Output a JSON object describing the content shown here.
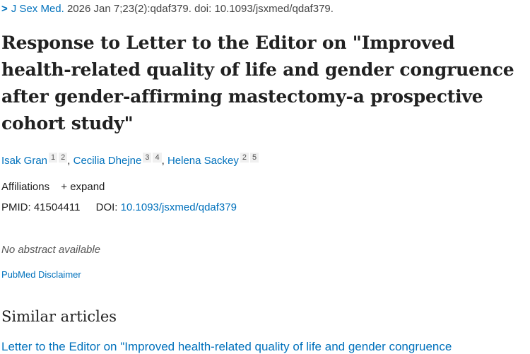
{
  "citation": {
    "journal": "J Sex Med.",
    "details": "2026 Jan 7;23(2):qdaf379. doi: 10.1093/jsxmed/qdaf379.",
    "chevron_icon": "chevron-right-icon"
  },
  "title": "Response to Letter to the Editor on \"Improved health-related quality of life and gender congruence after gender-affirming mastectomy-a prospective cohort study\"",
  "authors": [
    {
      "name": "Isak Gran",
      "affs": [
        "1",
        "2"
      ]
    },
    {
      "name": "Cecilia Dhejne",
      "affs": [
        "3",
        "4"
      ]
    },
    {
      "name": "Helena Sackey",
      "affs": [
        "2",
        "5"
      ]
    }
  ],
  "affiliations": {
    "label": "Affiliations",
    "expand": "+ expand"
  },
  "ids": {
    "pmid_label": "PMID:",
    "pmid": "41504411",
    "doi_label": "DOI:",
    "doi": "10.1093/jsxmed/qdaf379"
  },
  "abstract": "No abstract available",
  "disclaimer": "PubMed Disclaimer",
  "similar": {
    "heading": "Similar articles",
    "items": [
      "Letter to the Editor on \"Improved health-related quality of life and gender congruence"
    ]
  }
}
